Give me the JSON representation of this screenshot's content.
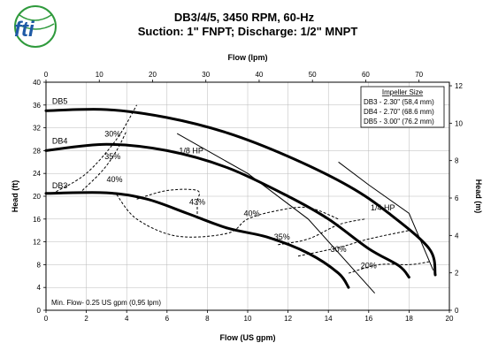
{
  "brand": {
    "logo_text": "fti",
    "colors": {
      "primary": "#1f5aa6",
      "secondary": "#2f9a3c"
    }
  },
  "header": {
    "title_line1": "DB3/4/5, 3450 RPM, 60-Hz",
    "title_line2": "Suction: 1\" FNPT; Discharge: 1/2\" MNPT"
  },
  "chart_data": {
    "type": "line",
    "x_top": {
      "label": "Flow (lpm)",
      "range": [
        0,
        75.7
      ],
      "ticks": [
        0,
        10,
        20,
        30,
        40,
        50,
        60,
        70
      ]
    },
    "x_bottom": {
      "label": "Flow (US gpm)",
      "range": [
        0,
        20
      ],
      "ticks": [
        0,
        2,
        4,
        6,
        8,
        10,
        12,
        14,
        16,
        18,
        20
      ]
    },
    "y_left": {
      "label": "Head (ft)",
      "range": [
        0,
        40
      ],
      "ticks": [
        0,
        4,
        8,
        12,
        16,
        20,
        24,
        28,
        32,
        36,
        40
      ]
    },
    "y_right": {
      "label": "Head (m)",
      "range": [
        0,
        12.19
      ],
      "ticks": [
        0,
        2,
        4,
        6,
        8,
        10,
        12
      ]
    },
    "grid": true,
    "series": [
      {
        "name": "DB5",
        "points": [
          [
            0,
            35
          ],
          [
            3,
            35.2
          ],
          [
            6,
            33.8
          ],
          [
            9,
            31.1
          ],
          [
            12,
            27
          ],
          [
            15,
            21.8
          ],
          [
            17,
            17
          ],
          [
            19,
            10.8
          ],
          [
            19.3,
            6.2
          ]
        ]
      },
      {
        "name": "DB4",
        "points": [
          [
            0,
            28
          ],
          [
            3,
            29.1
          ],
          [
            6,
            28
          ],
          [
            9,
            25
          ],
          [
            12,
            20
          ],
          [
            14,
            16
          ],
          [
            16,
            10.8
          ],
          [
            17.5,
            7.8
          ],
          [
            18,
            5.8
          ]
        ]
      },
      {
        "name": "DB3",
        "points": [
          [
            0,
            20.5
          ],
          [
            3,
            20.6
          ],
          [
            5,
            19.5
          ],
          [
            7,
            17
          ],
          [
            9,
            14.4
          ],
          [
            11,
            12.8
          ],
          [
            13,
            10
          ],
          [
            14.5,
            6.5
          ],
          [
            15,
            4
          ]
        ]
      }
    ],
    "hp_lines": [
      {
        "label": "1/8 HP",
        "points": [
          [
            6.5,
            31
          ],
          [
            10,
            24
          ],
          [
            13,
            16
          ],
          [
            16.3,
            3
          ]
        ]
      },
      {
        "label": "1/4 HP",
        "points": [
          [
            14.5,
            26
          ],
          [
            16,
            22
          ],
          [
            18,
            17
          ],
          [
            19.2,
            7
          ]
        ]
      }
    ],
    "efficiency_contours": [
      {
        "label": "30%",
        "points": [
          [
            0.5,
            20.8
          ],
          [
            2,
            24
          ],
          [
            3.5,
            30
          ],
          [
            4.5,
            36
          ]
        ]
      },
      {
        "label": "35%",
        "points": [
          [
            1.8,
            21
          ],
          [
            2.8,
            24.5
          ],
          [
            3.5,
            28
          ],
          [
            4,
            31.5
          ]
        ]
      },
      {
        "label": "40%",
        "points": [
          [
            3.5,
            20.3
          ],
          [
            4.5,
            16
          ],
          [
            6.5,
            13
          ],
          [
            9,
            13.5
          ],
          [
            10,
            16
          ],
          [
            11.5,
            17.5
          ],
          [
            13,
            18
          ],
          [
            14.5,
            16
          ]
        ]
      },
      {
        "label": "43%",
        "points": [
          [
            4.5,
            19.5
          ],
          [
            6,
            21
          ],
          [
            7.5,
            21
          ],
          [
            7.5,
            19
          ],
          [
            7.5,
            16
          ]
        ]
      },
      {
        "label": "35%",
        "points": [
          [
            11.5,
            11.5
          ],
          [
            13,
            12.5
          ],
          [
            14.5,
            15
          ],
          [
            15.8,
            16
          ]
        ]
      },
      {
        "label": "30%",
        "points": [
          [
            12.5,
            9.5
          ],
          [
            14.5,
            11
          ],
          [
            16,
            12.5
          ],
          [
            18,
            14
          ]
        ]
      },
      {
        "label": "20%",
        "points": [
          [
            15,
            6.5
          ],
          [
            16.5,
            8
          ],
          [
            18,
            8
          ],
          [
            19,
            8.5
          ]
        ]
      }
    ],
    "labels": {
      "impeller_title": "Impeller Size",
      "impeller_items": [
        "DB3 - 2.30\" (58,4 mm)",
        "DB4 - 2.70\" (68.6 mm)",
        "DB5 - 3.00\" (76.2 mm)"
      ],
      "min_flow": "Min. Flow- 0.25 US gpm (0,95 lpm)"
    }
  }
}
